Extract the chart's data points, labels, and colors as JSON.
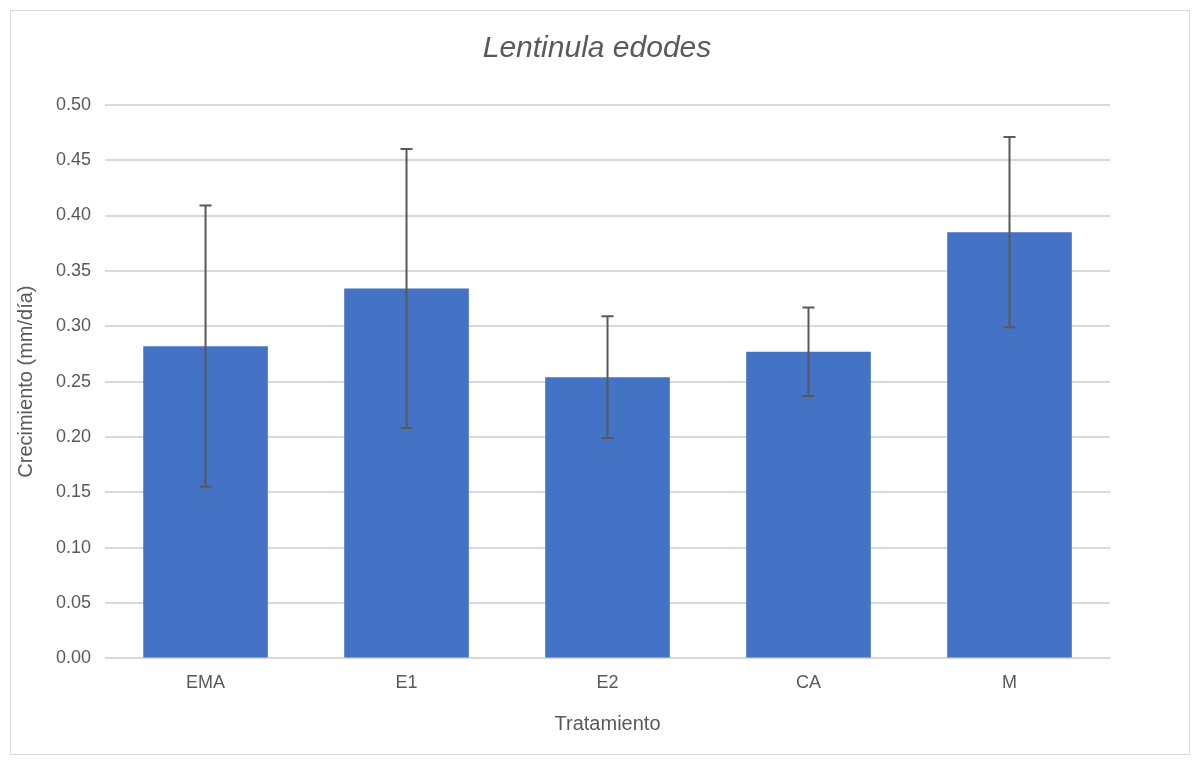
{
  "chart_data": {
    "type": "bar",
    "title": "Lentinula edodes",
    "xlabel": "Tratamiento",
    "ylabel": "Crecimiento (mm/día)",
    "categories": [
      "EMA",
      "E1",
      "E2",
      "CA",
      "M"
    ],
    "values": [
      0.282,
      0.334,
      0.254,
      0.277,
      0.385
    ],
    "errors": [
      0.127,
      0.126,
      0.055,
      0.04,
      0.086
    ],
    "color": "#4472c4",
    "ylim": [
      0,
      0.5
    ],
    "yticks": [
      {
        "value": 0,
        "label": "0.00"
      },
      {
        "value": 0.05,
        "label": "0.05"
      },
      {
        "value": 0.1,
        "label": "0.10"
      },
      {
        "value": 0.15,
        "label": "0.15"
      },
      {
        "value": 0.2,
        "label": "0.20"
      },
      {
        "value": 0.25,
        "label": "0.25"
      },
      {
        "value": 0.3,
        "label": "0.30"
      },
      {
        "value": 0.35,
        "label": "0.35"
      },
      {
        "value": 0.4,
        "label": "0.40"
      },
      {
        "value": 0.45,
        "label": "0.45"
      },
      {
        "value": 0.5,
        "label": "0.50"
      }
    ],
    "grid": "y"
  }
}
